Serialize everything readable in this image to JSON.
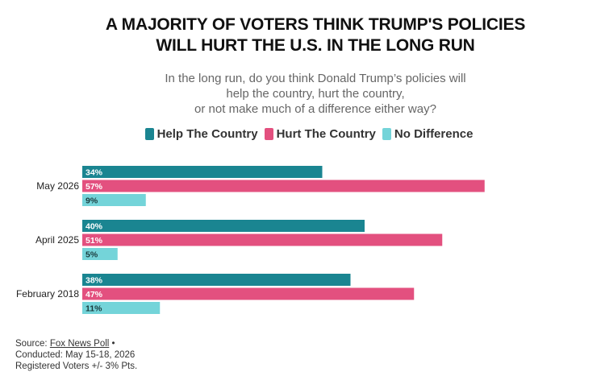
{
  "chart_data": {
    "type": "bar",
    "orientation": "horizontal",
    "title_line1": "A MAJORITY OF VOTERS THINK TRUMP'S POLICIES",
    "title_line2": "WILL HURT THE U.S. IN THE LONG RUN",
    "subtitle_line1": "In the long run, do you think Donald Trump’s policies will",
    "subtitle_line2": "help the country, hurt the country,",
    "subtitle_line3": "or not make much of a difference either way?",
    "categories": [
      "May 2026",
      "April 2025",
      "February 2018"
    ],
    "series": [
      {
        "name": "Help The Country",
        "color": "#1a8591",
        "values": [
          34,
          40,
          38
        ]
      },
      {
        "name": "Hurt The Country",
        "color": "#e3507f",
        "values": [
          57,
          51,
          47
        ]
      },
      {
        "name": "No Difference",
        "color": "#74d4d9",
        "values": [
          9,
          5,
          11
        ]
      }
    ],
    "value_suffix": "%",
    "legend_position": "top-center",
    "grid": false
  },
  "footer": {
    "source_prefix": "Source: ",
    "source_link": "Fox News Poll",
    "source_suffix": " •",
    "conducted": "Conducted: May 15-18, 2026",
    "sample": "Registered Voters +/- 3% Pts."
  }
}
